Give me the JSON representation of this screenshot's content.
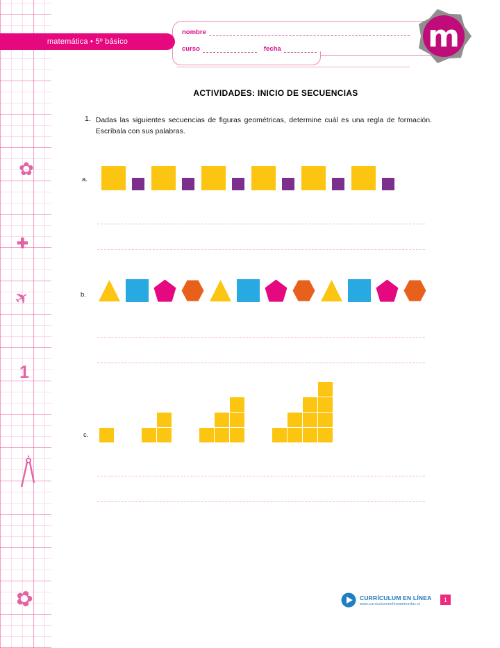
{
  "colors": {
    "accent_magenta": "#e5087e",
    "logo_magenta": "#c00b7a",
    "logo_splash_gray": "#8f8f8f",
    "sidebar_grid_pink": "#ec6eaa",
    "yellow": "#fcc511",
    "purple": "#7d2f8d",
    "blue": "#29a9e1",
    "pink": "#e5087e",
    "orange": "#e8611c",
    "footer_blue": "#1c75bb",
    "page_badge_pink": "#ee2a7b",
    "answer_line_pink": "#eeb3d6"
  },
  "header": {
    "subject_band": "matemática • 5º básico",
    "name_label": "nombre",
    "class_label": "curso",
    "date_label": "fecha",
    "logo_letter": "m"
  },
  "sidebar": {
    "doodle_number": "1",
    "doodles": [
      "flower-icon",
      "plus-icon",
      "paper-plane-icon",
      "number-one-doodle",
      "compass-icon",
      "flower-icon"
    ]
  },
  "title": "ACTIVIDADES: INICIO DE SECUENCIAS",
  "exercise": {
    "number": "1.",
    "instructions": "Dadas las siguientes secuencias de figuras geométricas, determine cuál es una regla de formación. Escríbala con sus palabras."
  },
  "sequences": [
    {
      "label": "a.",
      "description": "alternating large yellow squares and small purple squares",
      "answer_lines": 2,
      "items": [
        {
          "shape": "square",
          "size": "large",
          "color": "#fcc511",
          "name": "large-yellow-square"
        },
        {
          "shape": "square",
          "size": "small",
          "color": "#7d2f8d",
          "name": "small-purple-square"
        },
        {
          "shape": "square",
          "size": "large",
          "color": "#fcc511",
          "name": "large-yellow-square"
        },
        {
          "shape": "square",
          "size": "small",
          "color": "#7d2f8d",
          "name": "small-purple-square"
        },
        {
          "shape": "square",
          "size": "large",
          "color": "#fcc511",
          "name": "large-yellow-square"
        },
        {
          "shape": "square",
          "size": "small",
          "color": "#7d2f8d",
          "name": "small-purple-square"
        },
        {
          "shape": "square",
          "size": "large",
          "color": "#fcc511",
          "name": "large-yellow-square"
        },
        {
          "shape": "square",
          "size": "small",
          "color": "#7d2f8d",
          "name": "small-purple-square"
        },
        {
          "shape": "square",
          "size": "large",
          "color": "#fcc511",
          "name": "large-yellow-square"
        },
        {
          "shape": "square",
          "size": "small",
          "color": "#7d2f8d",
          "name": "small-purple-square"
        },
        {
          "shape": "square",
          "size": "large",
          "color": "#fcc511",
          "name": "large-yellow-square"
        },
        {
          "shape": "square",
          "size": "small",
          "color": "#7d2f8d",
          "name": "small-purple-square"
        }
      ]
    },
    {
      "label": "b.",
      "description": "repeating cycle: yellow triangle, blue square, pink pentagon, orange hexagon",
      "answer_lines": 2,
      "items": [
        {
          "shape": "triangle",
          "color": "#fcc511",
          "name": "yellow-triangle"
        },
        {
          "shape": "square",
          "color": "#29a9e1",
          "name": "blue-square"
        },
        {
          "shape": "pentagon",
          "color": "#e5087e",
          "name": "pink-pentagon"
        },
        {
          "shape": "hexagon",
          "color": "#e8611c",
          "name": "orange-hexagon"
        },
        {
          "shape": "triangle",
          "color": "#fcc511",
          "name": "yellow-triangle"
        },
        {
          "shape": "square",
          "color": "#29a9e1",
          "name": "blue-square"
        },
        {
          "shape": "pentagon",
          "color": "#e5087e",
          "name": "pink-pentagon"
        },
        {
          "shape": "hexagon",
          "color": "#e8611c",
          "name": "orange-hexagon"
        },
        {
          "shape": "triangle",
          "color": "#fcc511",
          "name": "yellow-triangle"
        },
        {
          "shape": "square",
          "color": "#29a9e1",
          "name": "blue-square"
        },
        {
          "shape": "pentagon",
          "color": "#e5087e",
          "name": "pink-pentagon"
        },
        {
          "shape": "hexagon",
          "color": "#e8611c",
          "name": "orange-hexagon"
        }
      ]
    },
    {
      "label": "c.",
      "description": "growing staircase figures made of yellow squares (1, 3, 6, 10 squares)",
      "answer_lines": 2,
      "color": "#fcc511",
      "figures": [
        {
          "columns": [
            1
          ]
        },
        {
          "columns": [
            1,
            2
          ]
        },
        {
          "columns": [
            1,
            2,
            3
          ]
        },
        {
          "columns": [
            1,
            2,
            3,
            4
          ]
        }
      ]
    }
  ],
  "footer": {
    "logo_text": "CURRÍCULUM EN LÍNEA",
    "logo_subtext": "www.curriculumenlineamineduc.cl",
    "page_number": "1"
  }
}
